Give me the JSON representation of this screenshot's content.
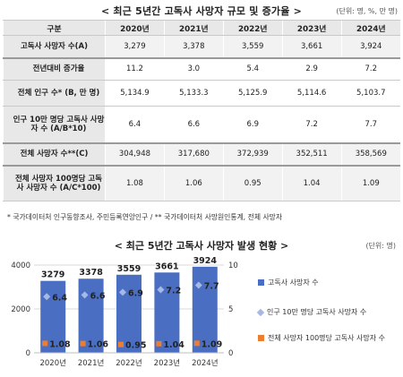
{
  "table_title": "< 최근 5년간 고독사 사망자 규모 및 증가율 >",
  "table_unit": "(단위: 명, %, 만 명)",
  "table": {
    "header": [
      "구분",
      "2020년",
      "2021년",
      "2022년",
      "2023년",
      "2024년"
    ],
    "rows": [
      {
        "label": "고독사 사망자 수(A)",
        "values": [
          "3,279",
          "3,378",
          "3,559",
          "3,661",
          "3,924"
        ]
      },
      {
        "label": "전년대비 증가율",
        "values": [
          "11.2",
          "3.0",
          "5.4",
          "2.9",
          "7.2"
        ]
      },
      {
        "label": "전체 인구 수* (B, 만 명)",
        "values": [
          "5,134.9",
          "5,133.3",
          "5,125.9",
          "5,114.6",
          "5,103.7"
        ]
      },
      {
        "label": "인구 10만 명당 고독사 사망자 수 (A/B*10)",
        "values": [
          "6.4",
          "6.6",
          "6.9",
          "7.2",
          "7.7"
        ]
      },
      {
        "label": "전체 사망자 수**(C)",
        "values": [
          "304,948",
          "317,680",
          "372,939",
          "352,511",
          "358,569"
        ]
      },
      {
        "label": "전체 사망자 100명당 고독사 사망자 수 (A/C*100)",
        "values": [
          "1.08",
          "1.06",
          "0.95",
          "1.04",
          "1.09"
        ]
      }
    ]
  },
  "table_notes": "* 국가데이터처 인구동향조사, 주민등록연앙인구   /   ** 국가데이터처 사망원인통계, 전체 사망자",
  "chart_title": "< 최근 5년간 고독사 사망자 발생 현황 >",
  "chart_unit": "(단위: 명)",
  "colors": {
    "bar": "#4a6fc2",
    "diamond": "#a6b8e6",
    "square": "#ed7d31",
    "header_bg": "#e8e8e8"
  },
  "chart_data": {
    "type": "bar",
    "categories": [
      "2020년",
      "2021년",
      "2022년",
      "2023년",
      "2024년"
    ],
    "left_ticks": [
      "0",
      "2000",
      "4000"
    ],
    "right_ticks": [
      "0",
      "5",
      "10"
    ],
    "ylim_left": [
      0,
      4000
    ],
    "ylim_right": [
      0,
      10
    ],
    "grid": true,
    "legend_position": "right",
    "series": [
      {
        "name": "고독사 사망자 수",
        "kind": "bar",
        "axis": "left",
        "values": [
          3279,
          3378,
          3559,
          3661,
          3924
        ],
        "labels": [
          "3279",
          "3378",
          "3559",
          "3661",
          "3924"
        ]
      },
      {
        "name": "인구 10만 명당 고독사 사망자 수",
        "kind": "diamond",
        "axis": "right",
        "values": [
          6.4,
          6.6,
          6.9,
          7.2,
          7.7
        ],
        "labels": [
          "6.4",
          "6.6",
          "6.9",
          "7.2",
          "7.7"
        ]
      },
      {
        "name": "전체 사망자 100명당 고독사 사망자 수",
        "kind": "square",
        "axis": "right",
        "values": [
          1.08,
          1.06,
          0.95,
          1.04,
          1.09
        ],
        "labels": [
          "1.08",
          "1.06",
          "0.95",
          "1.04",
          "1.09"
        ]
      }
    ]
  }
}
